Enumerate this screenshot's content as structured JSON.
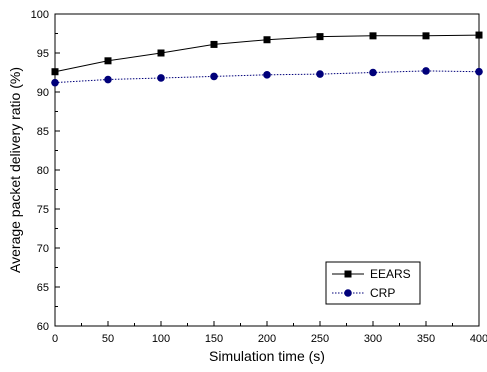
{
  "chart_data": {
    "type": "line",
    "title": "",
    "xlabel": "Simulation time (s)",
    "ylabel": "Average packet delivery ratio (%)",
    "xlim": [
      0,
      400
    ],
    "ylim": [
      60,
      100
    ],
    "x_ticks": [
      0,
      50,
      100,
      150,
      200,
      250,
      300,
      350,
      400
    ],
    "y_ticks": [
      60,
      65,
      70,
      75,
      80,
      85,
      90,
      95,
      100
    ],
    "x": [
      0,
      50,
      100,
      150,
      200,
      250,
      300,
      350,
      400
    ],
    "grid": false,
    "legend_position": "bottom-right",
    "series": [
      {
        "name": "EEARS",
        "values": [
          92.6,
          94.0,
          95.0,
          96.1,
          96.7,
          97.1,
          97.2,
          97.2,
          97.3
        ],
        "color": "#000000",
        "marker": "square",
        "line_style": "solid"
      },
      {
        "name": "CRP",
        "values": [
          91.2,
          91.6,
          91.8,
          92.0,
          92.2,
          92.3,
          92.5,
          92.7,
          92.6
        ],
        "color": "#00007a",
        "marker": "circle",
        "line_style": "dotted"
      }
    ]
  }
}
